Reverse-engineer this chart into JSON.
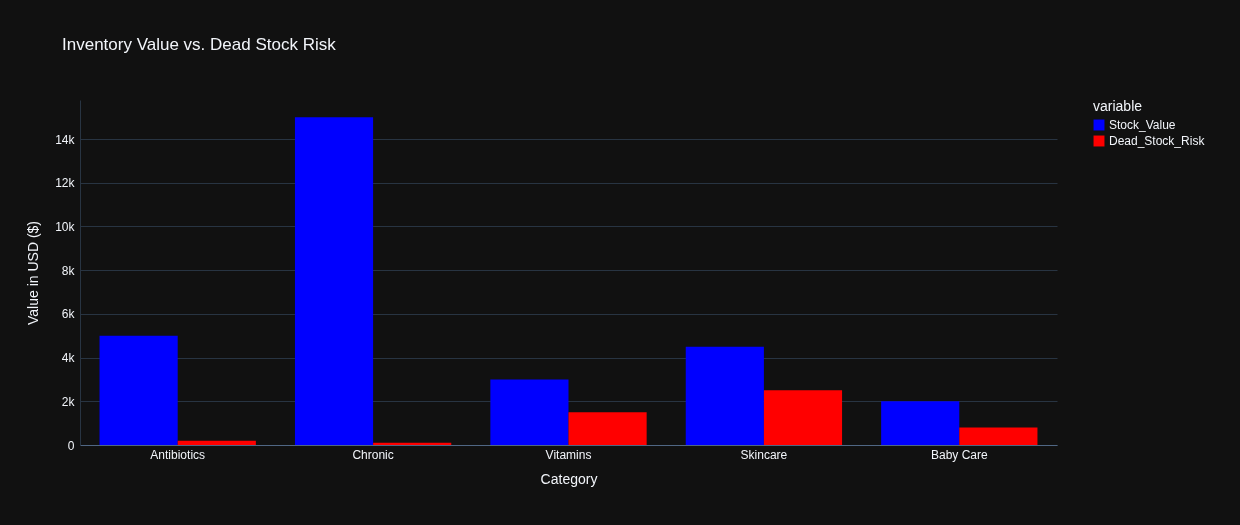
{
  "chart_data": {
    "type": "bar",
    "title": "Inventory Value vs. Dead Stock Risk",
    "xlabel": "Category",
    "ylabel": "Value in USD ($)",
    "legend_title": "variable",
    "categories": [
      "Antibiotics",
      "Chronic",
      "Vitamins",
      "Skincare",
      "Baby Care"
    ],
    "series": [
      {
        "name": "Stock_Value",
        "color": "#0000ff",
        "values": [
          5000,
          15000,
          3000,
          4500,
          2000
        ]
      },
      {
        "name": "Dead_Stock_Risk",
        "color": "#ff0000",
        "values": [
          200,
          100,
          1500,
          2500,
          800
        ]
      }
    ],
    "ylim": [
      0,
      15789
    ],
    "yticks": [
      0,
      {
        "value": 2000,
        "label": "2k"
      },
      {
        "value": 4000,
        "label": "4k"
      },
      {
        "value": 6000,
        "label": "6k"
      },
      {
        "value": 8000,
        "label": "8k"
      },
      {
        "value": 10000,
        "label": "10k"
      },
      {
        "value": 12000,
        "label": "12k"
      },
      {
        "value": 14000,
        "label": "14k"
      }
    ],
    "grid": "y",
    "legend": "top right"
  }
}
